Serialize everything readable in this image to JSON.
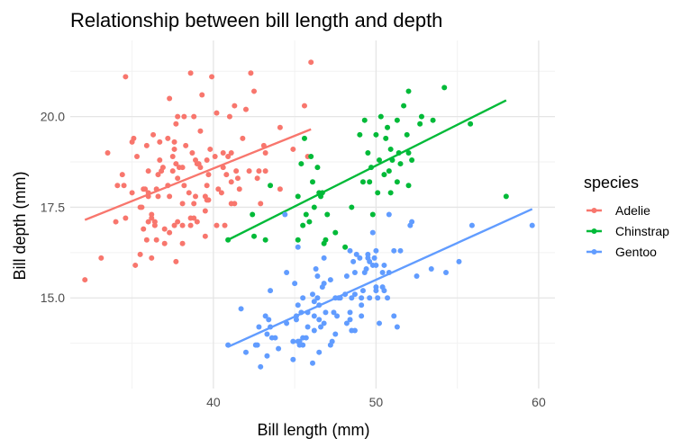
{
  "chart_data": {
    "type": "scatter",
    "title": "Relationship between bill length and depth",
    "xlabel": "Bill length (mm)",
    "ylabel": "Bill depth (mm)",
    "xlim": [
      31.2,
      61
    ],
    "ylim": [
      12.5,
      22.1
    ],
    "xticks": [
      40,
      50,
      60
    ],
    "yticks": [
      15.0,
      17.5,
      20.0
    ],
    "xtick_labels": [
      "40",
      "50",
      "60"
    ],
    "ytick_labels": [
      "15.0",
      "17.5",
      "20.0"
    ],
    "grid": true,
    "legend": {
      "title": "species",
      "position": "right"
    },
    "series": [
      {
        "name": "Adelie",
        "color": "#F8766D",
        "trend": {
          "x": [
            32.1,
            46.0
          ],
          "y": [
            17.15,
            19.65
          ]
        },
        "points": [
          [
            32.1,
            15.5
          ],
          [
            33.1,
            16.1
          ],
          [
            33.5,
            19.0
          ],
          [
            34.0,
            17.1
          ],
          [
            34.1,
            18.1
          ],
          [
            34.4,
            18.4
          ],
          [
            34.5,
            18.1
          ],
          [
            34.6,
            21.1
          ],
          [
            34.6,
            17.2
          ],
          [
            35.0,
            17.9
          ],
          [
            35.0,
            19.3
          ],
          [
            35.1,
            19.4
          ],
          [
            35.2,
            15.9
          ],
          [
            35.3,
            18.9
          ],
          [
            35.5,
            17.5
          ],
          [
            35.5,
            16.2
          ],
          [
            35.6,
            17.5
          ],
          [
            35.7,
            16.9
          ],
          [
            35.7,
            18.0
          ],
          [
            35.8,
            18.0
          ],
          [
            35.9,
            16.6
          ],
          [
            35.9,
            19.2
          ],
          [
            36.0,
            17.8
          ],
          [
            36.0,
            18.5
          ],
          [
            36.0,
            17.9
          ],
          [
            36.0,
            17.1
          ],
          [
            36.2,
            16.1
          ],
          [
            36.2,
            17.2
          ],
          [
            36.2,
            17.3
          ],
          [
            36.3,
            19.5
          ],
          [
            36.4,
            17.1
          ],
          [
            36.4,
            17.0
          ],
          [
            36.5,
            18.0
          ],
          [
            36.5,
            16.6
          ],
          [
            36.6,
            17.8
          ],
          [
            36.6,
            18.4
          ],
          [
            36.7,
            18.8
          ],
          [
            36.7,
            19.3
          ],
          [
            36.8,
            18.5
          ],
          [
            36.9,
            18.6
          ],
          [
            37.0,
            16.9
          ],
          [
            37.0,
            16.5
          ],
          [
            37.2,
            18.1
          ],
          [
            37.2,
            19.4
          ],
          [
            37.3,
            20.5
          ],
          [
            37.3,
            17.8
          ],
          [
            37.3,
            16.8
          ],
          [
            37.5,
            18.9
          ],
          [
            37.5,
            18.5
          ],
          [
            37.6,
            19.3
          ],
          [
            37.6,
            17.0
          ],
          [
            37.6,
            19.1
          ],
          [
            37.7,
            18.7
          ],
          [
            37.7,
            19.8
          ],
          [
            37.7,
            16.0
          ],
          [
            37.8,
            18.3
          ],
          [
            37.8,
            17.1
          ],
          [
            37.8,
            20.0
          ],
          [
            37.9,
            18.6
          ],
          [
            38.1,
            18.6
          ],
          [
            38.1,
            17.0
          ],
          [
            38.1,
            16.5
          ],
          [
            38.1,
            17.6
          ],
          [
            38.2,
            18.1
          ],
          [
            38.2,
            20.0
          ],
          [
            38.3,
            19.2
          ],
          [
            38.5,
            17.9
          ],
          [
            38.6,
            21.2
          ],
          [
            38.6,
            17.2
          ],
          [
            38.6,
            17.0
          ],
          [
            38.7,
            19.0
          ],
          [
            38.8,
            17.2
          ],
          [
            38.8,
            20.0
          ],
          [
            38.8,
            17.6
          ],
          [
            38.9,
            17.8
          ],
          [
            38.9,
            18.8
          ],
          [
            39.0,
            17.1
          ],
          [
            39.0,
            18.7
          ],
          [
            39.1,
            18.7
          ],
          [
            39.2,
            19.6
          ],
          [
            39.2,
            18.6
          ],
          [
            39.3,
            20.6
          ],
          [
            39.5,
            17.4
          ],
          [
            39.5,
            16.7
          ],
          [
            39.5,
            17.8
          ],
          [
            39.6,
            17.7
          ],
          [
            39.6,
            18.8
          ],
          [
            39.6,
            18.1
          ],
          [
            39.7,
            17.7
          ],
          [
            39.7,
            18.4
          ],
          [
            39.8,
            19.1
          ],
          [
            39.9,
            21.1
          ],
          [
            40.1,
            18.9
          ],
          [
            40.2,
            17.0
          ],
          [
            40.2,
            20.1
          ],
          [
            40.3,
            18.0
          ],
          [
            40.5,
            17.9
          ],
          [
            40.6,
            18.6
          ],
          [
            40.6,
            19.0
          ],
          [
            40.7,
            17.0
          ],
          [
            40.8,
            18.4
          ],
          [
            40.9,
            18.9
          ],
          [
            41.0,
            20.0
          ],
          [
            41.1,
            17.6
          ],
          [
            41.1,
            18.2
          ],
          [
            41.1,
            19.0
          ],
          [
            41.3,
            20.3
          ],
          [
            41.3,
            17.6
          ],
          [
            41.4,
            18.5
          ],
          [
            41.5,
            18.3
          ],
          [
            41.6,
            18.0
          ],
          [
            41.8,
            19.4
          ],
          [
            42.0,
            20.2
          ],
          [
            42.2,
            18.5
          ],
          [
            42.3,
            21.2
          ],
          [
            42.5,
            20.7
          ],
          [
            42.7,
            18.3
          ],
          [
            42.8,
            18.5
          ],
          [
            42.9,
            17.6
          ],
          [
            43.1,
            19.2
          ],
          [
            43.2,
            18.5
          ],
          [
            43.2,
            19.0
          ],
          [
            44.1,
            19.7
          ],
          [
            44.1,
            18.0
          ],
          [
            44.9,
            19.1
          ],
          [
            45.6,
            20.3
          ],
          [
            45.8,
            18.9
          ],
          [
            46.0,
            21.5
          ]
        ]
      },
      {
        "name": "Chinstrap",
        "color": "#00BA38",
        "trend": {
          "x": [
            40.9,
            58.0
          ],
          "y": [
            16.6,
            20.45
          ]
        },
        "points": [
          [
            40.9,
            16.6
          ],
          [
            42.4,
            17.3
          ],
          [
            42.5,
            16.7
          ],
          [
            43.2,
            16.6
          ],
          [
            43.5,
            18.1
          ],
          [
            45.2,
            17.8
          ],
          [
            45.2,
            16.6
          ],
          [
            45.4,
            18.7
          ],
          [
            45.5,
            17.0
          ],
          [
            45.6,
            19.4
          ],
          [
            45.7,
            17.3
          ],
          [
            45.9,
            17.1
          ],
          [
            46.0,
            18.9
          ],
          [
            46.1,
            18.2
          ],
          [
            46.2,
            17.5
          ],
          [
            46.4,
            18.6
          ],
          [
            46.5,
            17.9
          ],
          [
            46.6,
            17.8
          ],
          [
            46.7,
            17.9
          ],
          [
            46.8,
            16.5
          ],
          [
            46.9,
            16.6
          ],
          [
            47.0,
            17.3
          ],
          [
            47.5,
            16.8
          ],
          [
            48.1,
            16.4
          ],
          [
            48.5,
            17.5
          ],
          [
            49.0,
            19.5
          ],
          [
            49.2,
            18.2
          ],
          [
            49.3,
            19.9
          ],
          [
            49.5,
            19.0
          ],
          [
            49.6,
            18.2
          ],
          [
            49.7,
            18.6
          ],
          [
            49.8,
            17.3
          ],
          [
            50.0,
            19.5
          ],
          [
            50.1,
            17.9
          ],
          [
            50.2,
            18.8
          ],
          [
            50.3,
            20.0
          ],
          [
            50.5,
            18.4
          ],
          [
            50.6,
            19.4
          ],
          [
            50.7,
            19.7
          ],
          [
            50.8,
            18.5
          ],
          [
            50.9,
            19.1
          ],
          [
            50.9,
            17.9
          ],
          [
            51.0,
            18.8
          ],
          [
            51.3,
            18.2
          ],
          [
            51.3,
            19.9
          ],
          [
            51.4,
            19.0
          ],
          [
            51.5,
            18.7
          ],
          [
            51.7,
            20.3
          ],
          [
            51.9,
            19.5
          ],
          [
            52.0,
            18.1
          ],
          [
            52.0,
            19.0
          ],
          [
            52.0,
            20.7
          ],
          [
            52.2,
            18.8
          ],
          [
            52.7,
            19.8
          ],
          [
            52.8,
            20.0
          ],
          [
            53.5,
            19.9
          ],
          [
            54.2,
            20.8
          ],
          [
            55.8,
            19.8
          ],
          [
            58.0,
            17.8
          ]
        ]
      },
      {
        "name": "Gentoo",
        "color": "#619CFF",
        "trend": {
          "x": [
            40.9,
            59.6
          ],
          "y": [
            13.65,
            17.45
          ]
        },
        "points": [
          [
            40.9,
            13.7
          ],
          [
            41.7,
            14.7
          ],
          [
            42.0,
            13.5
          ],
          [
            42.6,
            13.7
          ],
          [
            42.7,
            13.7
          ],
          [
            42.8,
            14.2
          ],
          [
            42.9,
            13.1
          ],
          [
            43.2,
            14.5
          ],
          [
            43.3,
            13.4
          ],
          [
            43.3,
            14.0
          ],
          [
            43.4,
            14.4
          ],
          [
            43.5,
            14.2
          ],
          [
            43.5,
            15.2
          ],
          [
            43.6,
            13.9
          ],
          [
            43.8,
            13.9
          ],
          [
            44.0,
            13.6
          ],
          [
            44.4,
            17.3
          ],
          [
            44.5,
            14.3
          ],
          [
            44.5,
            15.7
          ],
          [
            44.9,
            13.8
          ],
          [
            44.9,
            13.3
          ],
          [
            45.0,
            15.4
          ],
          [
            45.1,
            14.5
          ],
          [
            45.1,
            14.4
          ],
          [
            45.2,
            13.8
          ],
          [
            45.2,
            14.8
          ],
          [
            45.2,
            16.4
          ],
          [
            45.3,
            13.7
          ],
          [
            45.3,
            13.8
          ],
          [
            45.4,
            14.6
          ],
          [
            45.5,
            13.7
          ],
          [
            45.5,
            13.9
          ],
          [
            45.5,
            15.0
          ],
          [
            45.7,
            13.9
          ],
          [
            45.8,
            14.2
          ],
          [
            45.8,
            14.6
          ],
          [
            46.1,
            13.2
          ],
          [
            46.1,
            15.1
          ],
          [
            46.2,
            14.1
          ],
          [
            46.2,
            14.5
          ],
          [
            46.2,
            14.9
          ],
          [
            46.3,
            15.8
          ],
          [
            46.4,
            15.0
          ],
          [
            46.4,
            15.6
          ],
          [
            46.5,
            13.5
          ],
          [
            46.5,
            14.4
          ],
          [
            46.5,
            14.8
          ],
          [
            46.6,
            14.2
          ],
          [
            46.7,
            15.3
          ],
          [
            46.8,
            14.3
          ],
          [
            46.8,
            15.4
          ],
          [
            46.8,
            16.1
          ],
          [
            46.9,
            14.6
          ],
          [
            47.2,
            13.7
          ],
          [
            47.2,
            15.5
          ],
          [
            47.3,
            13.8
          ],
          [
            47.4,
            14.6
          ],
          [
            47.5,
            14.0
          ],
          [
            47.5,
            15.0
          ],
          [
            47.6,
            14.5
          ],
          [
            47.7,
            15.0
          ],
          [
            47.8,
            15.0
          ],
          [
            48.1,
            15.1
          ],
          [
            48.2,
            14.3
          ],
          [
            48.2,
            15.6
          ],
          [
            48.4,
            14.4
          ],
          [
            48.4,
            14.6
          ],
          [
            48.4,
            16.3
          ],
          [
            48.5,
            14.1
          ],
          [
            48.5,
            15.0
          ],
          [
            48.6,
            16.0
          ],
          [
            48.7,
            14.1
          ],
          [
            48.7,
            15.1
          ],
          [
            48.7,
            15.7
          ],
          [
            48.8,
            16.2
          ],
          [
            49.0,
            16.1
          ],
          [
            49.1,
            14.5
          ],
          [
            49.1,
            14.8
          ],
          [
            49.1,
            15.0
          ],
          [
            49.2,
            15.2
          ],
          [
            49.3,
            15.7
          ],
          [
            49.4,
            15.8
          ],
          [
            49.5,
            16.1
          ],
          [
            49.5,
            16.2
          ],
          [
            49.6,
            15.0
          ],
          [
            49.6,
            16.0
          ],
          [
            49.8,
            15.9
          ],
          [
            49.8,
            16.8
          ],
          [
            49.9,
            16.1
          ],
          [
            50.0,
            15.2
          ],
          [
            50.0,
            15.3
          ],
          [
            50.0,
            15.9
          ],
          [
            50.0,
            16.3
          ],
          [
            50.1,
            15.0
          ],
          [
            50.2,
            14.3
          ],
          [
            50.4,
            15.3
          ],
          [
            50.4,
            15.7
          ],
          [
            50.5,
            15.2
          ],
          [
            50.5,
            15.9
          ],
          [
            50.7,
            15.0
          ],
          [
            50.8,
            15.7
          ],
          [
            50.8,
            17.3
          ],
          [
            51.1,
            14.5
          ],
          [
            51.1,
            16.3
          ],
          [
            51.3,
            14.2
          ],
          [
            51.5,
            16.3
          ],
          [
            52.1,
            17.0
          ],
          [
            52.2,
            17.1
          ],
          [
            52.5,
            15.6
          ],
          [
            53.4,
            15.8
          ],
          [
            54.3,
            15.7
          ],
          [
            55.1,
            16.0
          ],
          [
            55.9,
            17.0
          ],
          [
            59.6,
            17.0
          ]
        ]
      }
    ]
  }
}
